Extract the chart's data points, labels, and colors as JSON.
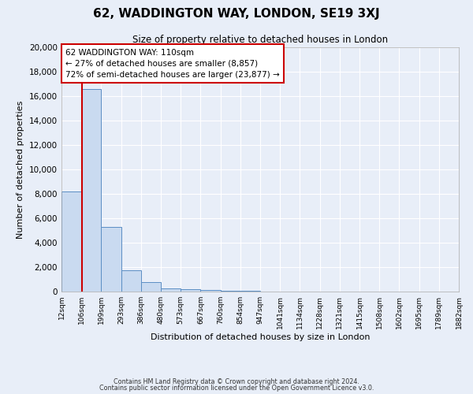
{
  "title": "62, WADDINGTON WAY, LONDON, SE19 3XJ",
  "subtitle": "Size of property relative to detached houses in London",
  "xlabel": "Distribution of detached houses by size in London",
  "ylabel": "Number of detached properties",
  "bin_labels": [
    "12sqm",
    "106sqm",
    "199sqm",
    "293sqm",
    "386sqm",
    "480sqm",
    "573sqm",
    "667sqm",
    "760sqm",
    "854sqm",
    "947sqm",
    "1041sqm",
    "1134sqm",
    "1228sqm",
    "1321sqm",
    "1415sqm",
    "1508sqm",
    "1602sqm",
    "1695sqm",
    "1789sqm",
    "1882sqm"
  ],
  "bin_values": [
    8200,
    16600,
    5300,
    1750,
    750,
    250,
    175,
    100,
    75,
    50,
    0,
    0,
    0,
    0,
    0,
    0,
    0,
    0,
    0,
    0
  ],
  "bar_color": "#c9daf0",
  "bar_edge_color": "#5b8ec4",
  "vline_color": "#cc0000",
  "annotation_text": "62 WADDINGTON WAY: 110sqm\n← 27% of detached houses are smaller (8,857)\n72% of semi-detached houses are larger (23,877) →",
  "annotation_box_color": "#ffffff",
  "annotation_box_edge": "#cc0000",
  "ylim": [
    0,
    20000
  ],
  "yticks": [
    0,
    2000,
    4000,
    6000,
    8000,
    10000,
    12000,
    14000,
    16000,
    18000,
    20000
  ],
  "bg_color": "#e8eef8",
  "plot_bg_color": "#e8eef8",
  "grid_color": "#ffffff",
  "footer_line1": "Contains HM Land Registry data © Crown copyright and database right 2024.",
  "footer_line2": "Contains public sector information licensed under the Open Government Licence v3.0."
}
